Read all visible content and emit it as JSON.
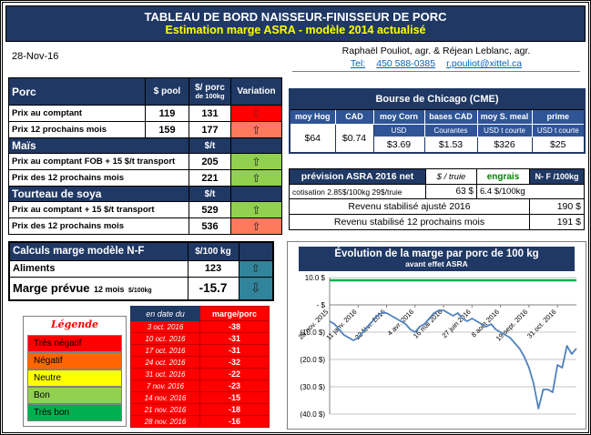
{
  "title_bar": {
    "line1": "TABLEAU DE BORD NAISSEUR-FINISSEUR DE PORC",
    "line2": "Estimation marge ASRA - modèle 2014 actualisé"
  },
  "header": {
    "date": "28-Nov-16",
    "authors": "Raphaël Pouliot, agr.   &   Réjean Leblanc, agr.",
    "tel_label": "Tel:",
    "phone": "450 588-0385",
    "email": "r.pouliot@xittel.ca"
  },
  "left_table": {
    "porc": {
      "title": "Porc",
      "col_pool": "$ pool",
      "col_porc_1": "$/ porc",
      "col_porc_2": "de 100kg",
      "col_variation": "Variation",
      "rows": [
        {
          "label": "Prix au comptant",
          "pool": "119",
          "porc": "131",
          "glyph": "⇩",
          "bg": "#FF0000"
        },
        {
          "label": "Prix 12 prochains mois",
          "pool": "159",
          "porc": "177",
          "glyph": "⇧",
          "bg": "#FF7A5C"
        }
      ]
    },
    "mais": {
      "title": "Maïs",
      "unit": "$/t",
      "rows": [
        {
          "label": "Prix au comptant FOB + 15 $/t transport",
          "value": "205",
          "glyph": "⇧",
          "bg": "#92D050"
        },
        {
          "label": "Prix des 12 prochains mois",
          "value": "221",
          "glyph": "⇧",
          "bg": "#92D050"
        }
      ]
    },
    "soya": {
      "title": "Tourteau de soya",
      "unit": "$/t",
      "rows": [
        {
          "label": "Prix au comptant + 15 $/t transport",
          "value": "529",
          "glyph": "⇧",
          "bg": "#92D050"
        },
        {
          "label": "Prix des 12 prochains mois",
          "value": "536",
          "glyph": "⇧",
          "bg": "#FF7A5C"
        }
      ]
    }
  },
  "calc_table": {
    "title": "Calculs marge  modèle N-F",
    "unit": "$/100 kg",
    "aliments_label": "Aliments",
    "aliments_value": "123",
    "aliments_glyph": "⇧",
    "aliments_bg": "#31849B",
    "marge_label": "Marge prévue",
    "marge_sub": "12 mois",
    "marge_unit": "$/100kg",
    "marge_value": "-15.7",
    "marge_glyph": "⇩",
    "marge_bg": "#31849B"
  },
  "legend": {
    "title": "Légende",
    "items": [
      {
        "label": "Très négatif",
        "bg": "#FF0000"
      },
      {
        "label": "Négatif",
        "bg": "#FF6600"
      },
      {
        "label": "Neutre",
        "bg": "#FFFF00"
      },
      {
        "label": "Bon",
        "bg": "#92D050"
      },
      {
        "label": "Très bon",
        "bg": "#00B050"
      }
    ]
  },
  "weekly_table": {
    "col_date": "en date du",
    "col_value": "marge/porc",
    "rows": [
      {
        "date": "3 oct. 2016",
        "value": "-38"
      },
      {
        "date": "10 oct. 2016",
        "value": "-31"
      },
      {
        "date": "17 oct. 2016",
        "value": "-31"
      },
      {
        "date": "24 oct. 2016",
        "value": "-32"
      },
      {
        "date": "31 oct. 2016",
        "value": "-22"
      },
      {
        "date": "7 nov. 2016",
        "value": "-23"
      },
      {
        "date": "14 nov. 2016",
        "value": "-15"
      },
      {
        "date": "21 nov. 2016",
        "value": "-18"
      },
      {
        "date": "28 nov. 2016",
        "value": "-16"
      }
    ]
  },
  "cme_table": {
    "title": "Bourse de Chicago (CME)",
    "columns": [
      {
        "header": "moy Hog",
        "sub": "",
        "value": "$64"
      },
      {
        "header": "CAD",
        "sub": "",
        "value": "$0.74"
      },
      {
        "header": "moy Corn",
        "sub": "USD",
        "value": "$3.69"
      },
      {
        "header": "bases CAD",
        "sub": "Courantes",
        "value": "$1.53"
      },
      {
        "header": "moy S. meal",
        "sub": "USD t courte",
        "value": "$326"
      },
      {
        "header": "prime",
        "sub": "USD t courte",
        "value": "$25"
      }
    ]
  },
  "asra_table": {
    "h_label": "prévision ASRA 2016 net",
    "h_truie": "$ / truie",
    "h_engrais": "engrais",
    "h_nf": "N- F /100kg",
    "cotisation_label": "cotisation 2.85$/100kg 29$/truie",
    "cotisation_value": "63 $",
    "engrais_value": "6.4 $/100kg",
    "rows": [
      {
        "label": "Revenu stabilisé ajusté 2016",
        "value": "190 $"
      },
      {
        "label": "Revenu stabilisé 12 prochains mois",
        "value": "191 $"
      }
    ]
  },
  "chart_data": {
    "type": "line",
    "title": "Évolution de la marge par porc de 100 kg",
    "subtitle": "avant effet ASRA",
    "ylabel": "",
    "xlabel": "",
    "ylim": [
      -40,
      10
    ],
    "grid": true,
    "legend_position": "none",
    "y_ticks": [
      {
        "v": 10,
        "label": "10.0 $"
      },
      {
        "v": 0,
        "label": "-  $"
      },
      {
        "v": -10,
        "label": "(10.0 $)"
      },
      {
        "v": -20,
        "label": "(20.0 $)"
      },
      {
        "v": -30,
        "label": "(30.0 $)"
      },
      {
        "v": -40,
        "label": "(40.0 $)"
      }
    ],
    "x_tick_labels": [
      "28 nov. 2015",
      "11 janv. 2016",
      "22 févr. 2016",
      "4 avr. 2016",
      "16 mai 2016",
      "27 juin 2016",
      "8 août 2016",
      "19 sept. 2016",
      "31 oct. 2016"
    ],
    "x_tick_indices": [
      0,
      6,
      12,
      18,
      24,
      30,
      36,
      42,
      48
    ],
    "reference_line": {
      "value": 9,
      "color": "#00B050"
    },
    "series": [
      {
        "name": "marge par porc avant effet ASRA",
        "color": "#4F81BD",
        "values": [
          -6,
          -7,
          -9,
          -11,
          -12,
          -13,
          -12,
          -10,
          -8,
          -6,
          -4,
          -3,
          -3,
          -4,
          -5,
          -6,
          -7,
          -9,
          -10,
          -8,
          -7,
          -5,
          -3,
          -2,
          -2,
          -3,
          -4,
          -3,
          -5,
          -6,
          -5,
          -6,
          -7,
          -8,
          -7,
          -9,
          -10,
          -11,
          -12,
          -14,
          -16,
          -19,
          -23,
          -29,
          -38,
          -31,
          -31,
          -32,
          -22,
          -23,
          -15,
          -18,
          -16
        ]
      }
    ]
  },
  "colors": {
    "navy": "#1F3864",
    "mid_blue": "#2F5597",
    "red": "#FF0000",
    "orange": "#FF6600",
    "salmon": "#FF7A5C",
    "yellow": "#FFFF00",
    "light_green": "#92D050",
    "green": "#00B050",
    "teal": "#31849B",
    "link_blue": "#0563C1"
  }
}
